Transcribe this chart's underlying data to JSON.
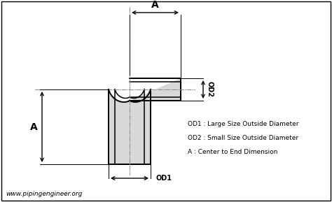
{
  "background_color": "#ffffff",
  "border_color": "#000000",
  "line_color": "#000000",
  "centerline_color": "#666666",
  "pipe_fill": "#d8d8d8",
  "website": "www.pipingengineer.org",
  "legend_lines": [
    "OD1 : Large Size Outside Diameter",
    "OD2 : Small Size Outside Diameter",
    "A : Center to End Dimension"
  ],
  "label_A_top": "A",
  "label_A_left": "A",
  "label_OD1": "OD1",
  "label_OD2": "OD2",
  "figsize": [
    4.74,
    2.89
  ],
  "dpi": 100
}
